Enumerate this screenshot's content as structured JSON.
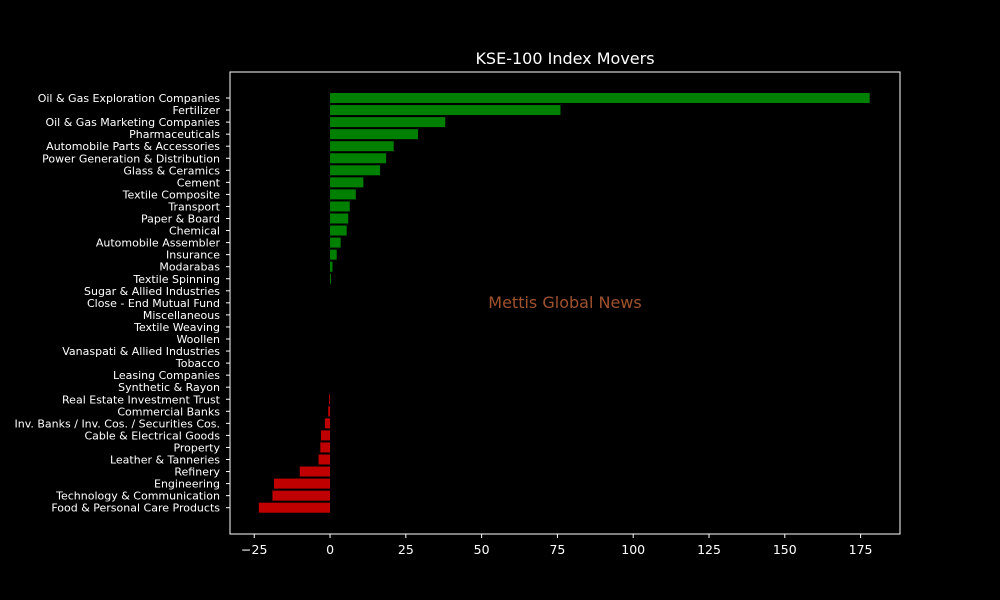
{
  "chart_data": {
    "type": "bar",
    "orientation": "horizontal",
    "title": "KSE-100 Index Movers",
    "watermark": "Mettis Global News",
    "xlabel": "",
    "ylabel": "",
    "xlim": [
      -33,
      188
    ],
    "xticks": [
      -25,
      0,
      25,
      50,
      75,
      100,
      125,
      150,
      175
    ],
    "grid": false,
    "background": "#000000",
    "positive_color": "#008000",
    "negative_color": "#c00000",
    "watermark_color": "#a0522d",
    "categories": [
      "Oil & Gas Exploration Companies",
      "Fertilizer",
      "Oil & Gas Marketing Companies",
      "Pharmaceuticals",
      "Automobile Parts & Accessories",
      "Power Generation & Distribution",
      "Glass & Ceramics",
      "Cement",
      "Textile Composite",
      "Transport",
      "Paper & Board",
      "Chemical",
      "Automobile Assembler",
      "Insurance",
      "Modarabas",
      "Textile Spinning",
      "Sugar & Allied Industries",
      "Close - End Mutual Fund",
      "Miscellaneous",
      "Textile Weaving",
      "Woollen",
      "Vanaspati & Allied Industries",
      "Tobacco",
      "Leasing Companies",
      "Synthetic & Rayon",
      "Real Estate Investment Trust",
      "Commercial Banks",
      "Inv. Banks / Inv. Cos. / Securities Cos.",
      "Cable & Electrical Goods",
      "Property",
      "Leather & Tanneries",
      "Refinery",
      "Engineering",
      "Technology & Communication",
      "Food & Personal Care Products"
    ],
    "values": [
      178,
      76,
      38,
      29,
      21,
      18.5,
      16.5,
      11,
      8.5,
      6.5,
      6,
      5.5,
      3.5,
      2.2,
      0.8,
      0.3,
      0,
      0,
      0,
      0,
      0,
      0,
      0,
      0,
      0,
      -0.3,
      -0.6,
      -1.7,
      -3,
      -3.2,
      -3.8,
      -10,
      -18.5,
      -19,
      -23.5
    ]
  }
}
